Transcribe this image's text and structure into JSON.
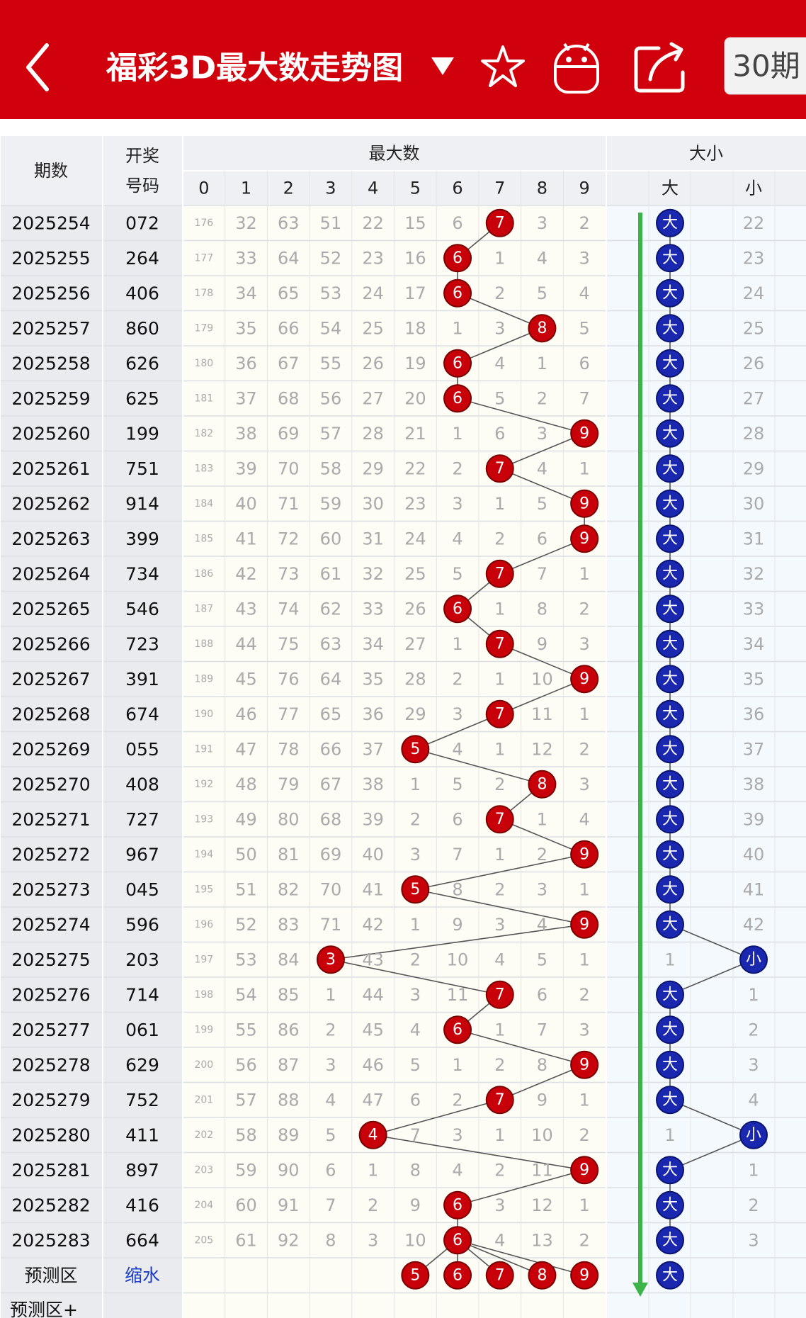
{
  "header": {
    "title": "福彩3D最大数走势图",
    "period_button": "30期"
  },
  "table": {
    "columns": {
      "period": "期数",
      "number": [
        "开奖",
        "号码"
      ],
      "max_group": "最大数",
      "digits": [
        "0",
        "1",
        "2",
        "3",
        "4",
        "5",
        "6",
        "7",
        "8",
        "9"
      ],
      "size_group": "大小",
      "size": [
        "大",
        "小"
      ]
    },
    "rows": [
      {
        "period": "2025254",
        "number": "072",
        "cells": [
          176,
          32,
          63,
          51,
          22,
          15,
          6,
          7,
          3,
          2
        ],
        "max": 7,
        "big": "大",
        "small": 22
      },
      {
        "period": "2025255",
        "number": "264",
        "cells": [
          177,
          33,
          64,
          52,
          23,
          16,
          6,
          1,
          4,
          3
        ],
        "max": 6,
        "big": "大",
        "small": 23
      },
      {
        "period": "2025256",
        "number": "406",
        "cells": [
          178,
          34,
          65,
          53,
          24,
          17,
          6,
          2,
          5,
          4
        ],
        "max": 6,
        "big": "大",
        "small": 24
      },
      {
        "period": "2025257",
        "number": "860",
        "cells": [
          179,
          35,
          66,
          54,
          25,
          18,
          1,
          3,
          8,
          5
        ],
        "max": 8,
        "big": "大",
        "small": 25
      },
      {
        "period": "2025258",
        "number": "626",
        "cells": [
          180,
          36,
          67,
          55,
          26,
          19,
          6,
          4,
          1,
          6
        ],
        "max": 6,
        "big": "大",
        "small": 26
      },
      {
        "period": "2025259",
        "number": "625",
        "cells": [
          181,
          37,
          68,
          56,
          27,
          20,
          6,
          5,
          2,
          7
        ],
        "max": 6,
        "big": "大",
        "small": 27
      },
      {
        "period": "2025260",
        "number": "199",
        "cells": [
          182,
          38,
          69,
          57,
          28,
          21,
          1,
          6,
          3,
          9
        ],
        "max": 9,
        "big": "大",
        "small": 28
      },
      {
        "period": "2025261",
        "number": "751",
        "cells": [
          183,
          39,
          70,
          58,
          29,
          22,
          2,
          7,
          4,
          1
        ],
        "max": 7,
        "big": "大",
        "small": 29
      },
      {
        "period": "2025262",
        "number": "914",
        "cells": [
          184,
          40,
          71,
          59,
          30,
          23,
          3,
          1,
          5,
          9
        ],
        "max": 9,
        "big": "大",
        "small": 30
      },
      {
        "period": "2025263",
        "number": "399",
        "cells": [
          185,
          41,
          72,
          60,
          31,
          24,
          4,
          2,
          6,
          9
        ],
        "max": 9,
        "big": "大",
        "small": 31
      },
      {
        "period": "2025264",
        "number": "734",
        "cells": [
          186,
          42,
          73,
          61,
          32,
          25,
          5,
          7,
          7,
          1
        ],
        "max": 7,
        "big": "大",
        "small": 32
      },
      {
        "period": "2025265",
        "number": "546",
        "cells": [
          187,
          43,
          74,
          62,
          33,
          26,
          6,
          1,
          8,
          2
        ],
        "max": 6,
        "big": "大",
        "small": 33
      },
      {
        "period": "2025266",
        "number": "723",
        "cells": [
          188,
          44,
          75,
          63,
          34,
          27,
          1,
          7,
          9,
          3
        ],
        "max": 7,
        "big": "大",
        "small": 34
      },
      {
        "period": "2025267",
        "number": "391",
        "cells": [
          189,
          45,
          76,
          64,
          35,
          28,
          2,
          1,
          10,
          9
        ],
        "max": 9,
        "big": "大",
        "small": 35
      },
      {
        "period": "2025268",
        "number": "674",
        "cells": [
          190,
          46,
          77,
          65,
          36,
          29,
          3,
          7,
          11,
          1
        ],
        "max": 7,
        "big": "大",
        "small": 36
      },
      {
        "period": "2025269",
        "number": "055",
        "cells": [
          191,
          47,
          78,
          66,
          37,
          5,
          4,
          1,
          12,
          2
        ],
        "max": 5,
        "big": "大",
        "small": 37
      },
      {
        "period": "2025270",
        "number": "408",
        "cells": [
          192,
          48,
          79,
          67,
          38,
          1,
          5,
          2,
          8,
          3
        ],
        "max": 8,
        "big": "大",
        "small": 38
      },
      {
        "period": "2025271",
        "number": "727",
        "cells": [
          193,
          49,
          80,
          68,
          39,
          2,
          6,
          7,
          1,
          4
        ],
        "max": 7,
        "big": "大",
        "small": 39
      },
      {
        "period": "2025272",
        "number": "967",
        "cells": [
          194,
          50,
          81,
          69,
          40,
          3,
          7,
          1,
          2,
          9
        ],
        "max": 9,
        "big": "大",
        "small": 40
      },
      {
        "period": "2025273",
        "number": "045",
        "cells": [
          195,
          51,
          82,
          70,
          41,
          5,
          8,
          2,
          3,
          1
        ],
        "max": 5,
        "big": "大",
        "small": 41
      },
      {
        "period": "2025274",
        "number": "596",
        "cells": [
          196,
          52,
          83,
          71,
          42,
          1,
          9,
          3,
          4,
          9
        ],
        "max": 9,
        "big": "大",
        "small": 42
      },
      {
        "period": "2025275",
        "number": "203",
        "cells": [
          197,
          53,
          84,
          3,
          43,
          2,
          10,
          4,
          5,
          1
        ],
        "max": 3,
        "big": 1,
        "small": "小"
      },
      {
        "period": "2025276",
        "number": "714",
        "cells": [
          198,
          54,
          85,
          1,
          44,
          3,
          11,
          7,
          6,
          2
        ],
        "max": 7,
        "big": "大",
        "small": 1
      },
      {
        "period": "2025277",
        "number": "061",
        "cells": [
          199,
          55,
          86,
          2,
          45,
          4,
          6,
          1,
          7,
          3
        ],
        "max": 6,
        "big": "大",
        "small": 2
      },
      {
        "period": "2025278",
        "number": "629",
        "cells": [
          200,
          56,
          87,
          3,
          46,
          5,
          1,
          2,
          8,
          9
        ],
        "max": 9,
        "big": "大",
        "small": 3
      },
      {
        "period": "2025279",
        "number": "752",
        "cells": [
          201,
          57,
          88,
          4,
          47,
          6,
          2,
          7,
          9,
          1
        ],
        "max": 7,
        "big": "大",
        "small": 4
      },
      {
        "period": "2025280",
        "number": "411",
        "cells": [
          202,
          58,
          89,
          5,
          4,
          7,
          3,
          1,
          10,
          2
        ],
        "max": 4,
        "big": 1,
        "small": "小"
      },
      {
        "period": "2025281",
        "number": "897",
        "cells": [
          203,
          59,
          90,
          6,
          1,
          8,
          4,
          2,
          11,
          9
        ],
        "max": 9,
        "big": "大",
        "small": 1
      },
      {
        "period": "2025282",
        "number": "416",
        "cells": [
          204,
          60,
          91,
          7,
          2,
          9,
          6,
          3,
          12,
          1
        ],
        "max": 6,
        "big": "大",
        "small": 2
      },
      {
        "period": "2025283",
        "number": "664",
        "cells": [
          205,
          61,
          92,
          8,
          3,
          10,
          6,
          4,
          13,
          2
        ],
        "max": 6,
        "big": "大",
        "small": 3
      }
    ],
    "prediction": {
      "label": "预测区",
      "shrink": "缩水",
      "digits": [
        5,
        6,
        7,
        8,
        9
      ],
      "size": "大"
    },
    "prediction_plus": "预测区+"
  }
}
